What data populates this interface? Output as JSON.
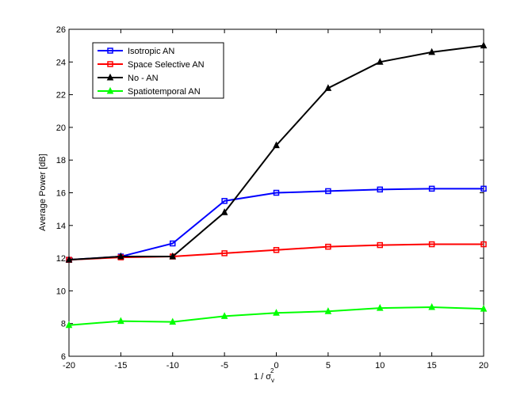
{
  "chart_data": {
    "type": "line",
    "title": "",
    "xlabel": "1 / σ",
    "xlabel_sub": "v",
    "xlabel_sup": "2",
    "ylabel": "Average Power [dB]",
    "xlim": [
      -20,
      20
    ],
    "ylim": [
      6,
      26
    ],
    "xticks": [
      -20,
      -15,
      -10,
      -5,
      0,
      5,
      10,
      15,
      20
    ],
    "yticks": [
      6,
      8,
      10,
      12,
      14,
      16,
      18,
      20,
      22,
      24,
      26
    ],
    "grid": false,
    "legend_position": "top-left",
    "x": [
      -20,
      -15,
      -10,
      -5,
      0,
      5,
      10,
      15,
      20
    ],
    "series": [
      {
        "name": "Isotropic AN",
        "color": "#0000ff",
        "marker": "square",
        "values": [
          11.9,
          12.1,
          12.9,
          15.5,
          16.0,
          16.1,
          16.2,
          16.25,
          16.25
        ]
      },
      {
        "name": "Space Selective AN",
        "color": "#ff0000",
        "marker": "square",
        "values": [
          11.9,
          12.05,
          12.1,
          12.3,
          12.5,
          12.7,
          12.8,
          12.85,
          12.85
        ]
      },
      {
        "name": "No - AN",
        "color": "#000000",
        "marker": "triangle",
        "values": [
          11.9,
          12.1,
          12.1,
          14.8,
          18.9,
          22.4,
          24.0,
          24.6,
          25.0
        ]
      },
      {
        "name": "Spatiotemporal AN",
        "color": "#00ff00",
        "marker": "triangle",
        "values": [
          7.9,
          8.15,
          8.1,
          8.45,
          8.65,
          8.75,
          8.95,
          9.0,
          8.9
        ]
      }
    ]
  }
}
